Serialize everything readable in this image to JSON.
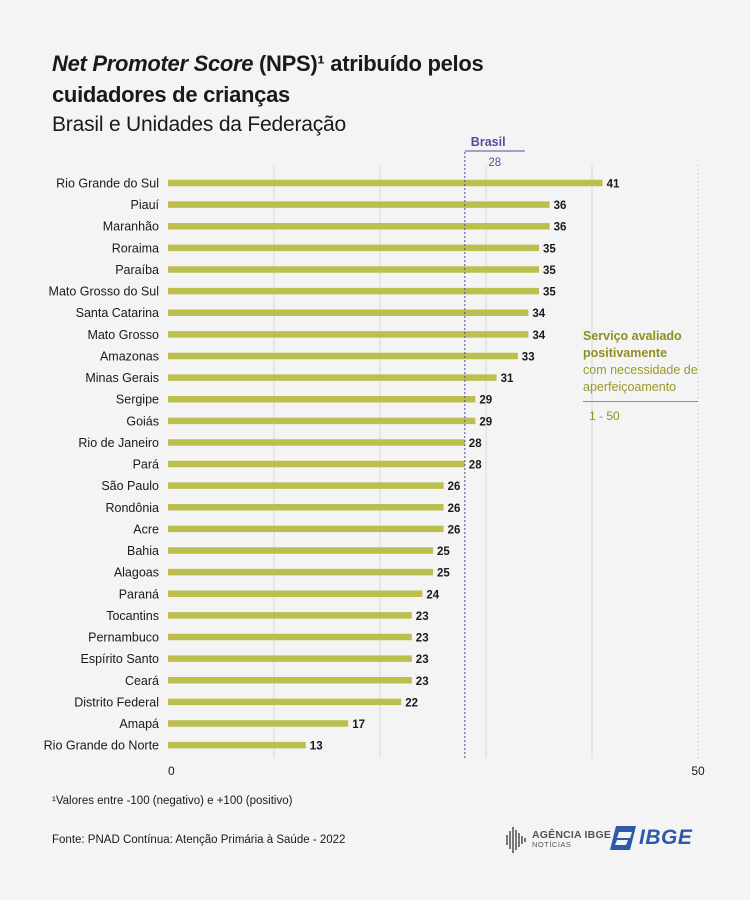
{
  "header": {
    "title_italic": "Net Promoter Score",
    "title_rest": " (NPS)¹ atribuído pelos",
    "title_line2": "cuidadores de crianças",
    "subtitle": "Brasil e Unidades da Federação"
  },
  "reference": {
    "name": "Brasil",
    "value_label": "28"
  },
  "side_note": {
    "line1": "Serviço avaliado",
    "line2": "positivamente",
    "line3": "com necessidade de",
    "line4": "aperfeiçoamento",
    "range": "1 - 50"
  },
  "footnote": "¹Valores entre -100 (negativo) e +100 (positivo)",
  "source": "Fonte: PNAD Contínua: Atenção Primária à Saúde - 2022",
  "logos": {
    "agencia_line1": "AGÊNCIA IBGE",
    "agencia_line2": "NOTÍCIAS",
    "ibge": "IBGE"
  },
  "colors": {
    "bar": "#bcbf4e",
    "reference": "#5b4a9e",
    "grid": "#d8d8d8",
    "note": "#9a9a2a"
  },
  "chart_data": {
    "type": "bar",
    "orientation": "horizontal",
    "title": "Net Promoter Score (NPS)¹ atribuído pelos cuidadores de crianças",
    "subtitle": "Brasil e Unidades da Federação",
    "categories": [
      "Rio Grande do Sul",
      "Piauí",
      "Maranhão",
      "Roraima",
      "Paraíba",
      "Mato Grosso do Sul",
      "Santa Catarina",
      "Mato Grosso",
      "Amazonas",
      "Minas Gerais",
      "Sergipe",
      "Goiás",
      "Rio de Janeiro",
      "Pará",
      "São Paulo",
      "Rondônia",
      "Acre",
      "Bahia",
      "Alagoas",
      "Paraná",
      "Tocantins",
      "Pernambuco",
      "Espírito Santo",
      "Ceará",
      "Distrito Federal",
      "Amapá",
      "Rio Grande do Norte"
    ],
    "values": [
      41,
      36,
      36,
      35,
      35,
      35,
      34,
      34,
      33,
      31,
      29,
      29,
      28,
      28,
      26,
      26,
      26,
      25,
      25,
      24,
      23,
      23,
      23,
      23,
      22,
      17,
      13
    ],
    "xlim": [
      0,
      50
    ],
    "x_ticks": [
      0,
      50
    ],
    "reference_line": {
      "label": "Brasil",
      "value": 28
    },
    "grid": true
  }
}
